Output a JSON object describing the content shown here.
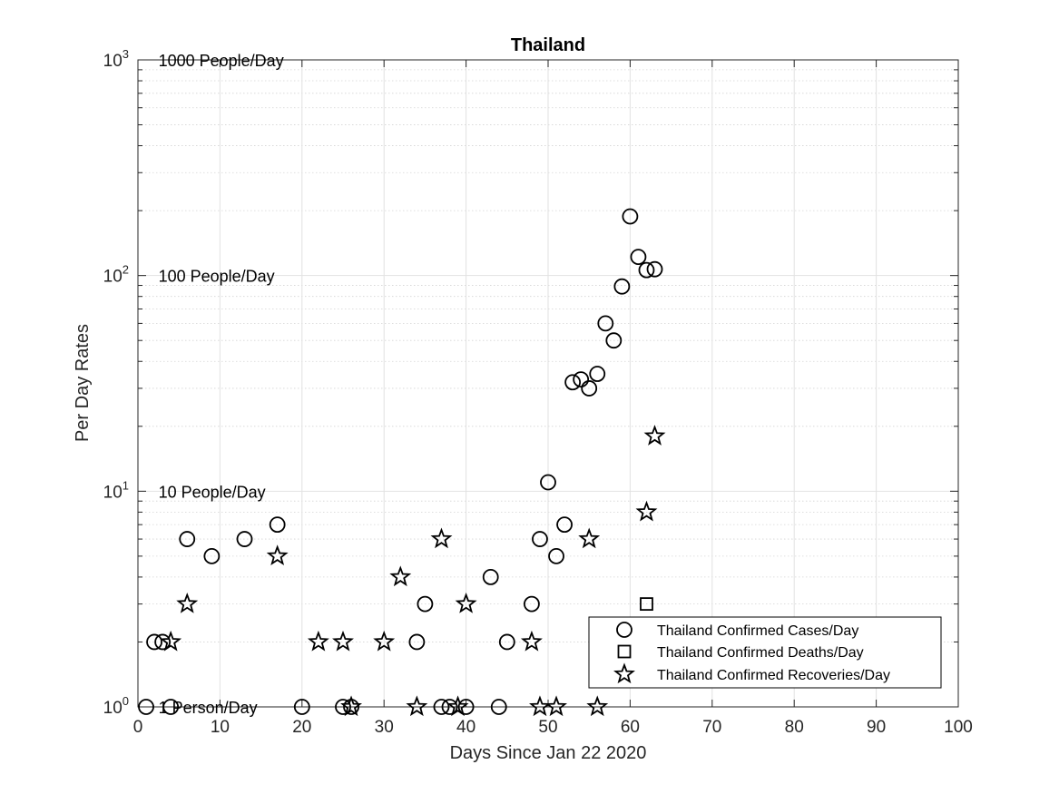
{
  "chart_data": {
    "type": "scatter",
    "title": "Thailand",
    "xlabel": "Days Since Jan 22 2020",
    "ylabel": "Per Day Rates",
    "xlim": [
      0,
      100
    ],
    "ylim": [
      1,
      1000
    ],
    "yscale": "log",
    "grid": true,
    "minor_grid": true,
    "legend_position": "lower-right",
    "x_ticks": [
      0,
      10,
      20,
      30,
      40,
      50,
      60,
      70,
      80,
      90,
      100
    ],
    "x_tick_labels": [
      "0",
      "10",
      "20",
      "30",
      "40",
      "50",
      "60",
      "70",
      "80",
      "90",
      "100"
    ],
    "y_ticks": [
      {
        "value": 1,
        "base": "10",
        "exp": "0"
      },
      {
        "value": 10,
        "base": "10",
        "exp": "1"
      },
      {
        "value": 100,
        "base": "10",
        "exp": "2"
      },
      {
        "value": 1000,
        "base": "10",
        "exp": "3"
      }
    ],
    "annotations": [
      {
        "text": "1 Person/Day",
        "x": 2.5,
        "y": 1
      },
      {
        "text": "10 People/Day",
        "x": 2.5,
        "y": 10
      },
      {
        "text": "100 People/Day",
        "x": 2.5,
        "y": 100
      },
      {
        "text": "1000 People/Day",
        "x": 2.5,
        "y": 1000
      }
    ],
    "series": [
      {
        "name": "Thailand Confirmed Cases/Day",
        "marker": "circle",
        "points": [
          [
            1,
            1
          ],
          [
            2,
            2
          ],
          [
            3,
            2
          ],
          [
            4,
            1
          ],
          [
            6,
            6
          ],
          [
            9,
            5
          ],
          [
            13,
            6
          ],
          [
            17,
            7
          ],
          [
            20,
            1
          ],
          [
            25,
            1
          ],
          [
            26,
            1
          ],
          [
            34,
            2
          ],
          [
            35,
            3
          ],
          [
            37,
            1
          ],
          [
            38,
            1
          ],
          [
            40,
            1
          ],
          [
            43,
            4
          ],
          [
            44,
            1
          ],
          [
            45,
            2
          ],
          [
            48,
            3
          ],
          [
            49,
            6
          ],
          [
            50,
            11
          ],
          [
            51,
            5
          ],
          [
            52,
            7
          ],
          [
            53,
            32
          ],
          [
            54,
            33
          ],
          [
            55,
            30
          ],
          [
            56,
            35
          ],
          [
            57,
            60
          ],
          [
            58,
            50
          ],
          [
            59,
            89
          ],
          [
            60,
            188
          ],
          [
            61,
            122
          ],
          [
            62,
            106
          ],
          [
            63,
            107
          ]
        ]
      },
      {
        "name": "Thailand Confirmed Deaths/Day",
        "marker": "square",
        "points": [
          [
            62,
            3
          ]
        ]
      },
      {
        "name": "Thailand Confirmed Recoveries/Day",
        "marker": "star",
        "points": [
          [
            4,
            2
          ],
          [
            6,
            3
          ],
          [
            17,
            5
          ],
          [
            22,
            2
          ],
          [
            25,
            2
          ],
          [
            26,
            1
          ],
          [
            30,
            2
          ],
          [
            32,
            4
          ],
          [
            34,
            1
          ],
          [
            37,
            6
          ],
          [
            39,
            1
          ],
          [
            40,
            3
          ],
          [
            48,
            2
          ],
          [
            49,
            1
          ],
          [
            51,
            1
          ],
          [
            55,
            6
          ],
          [
            56,
            1
          ],
          [
            62,
            8
          ],
          [
            63,
            18
          ]
        ]
      }
    ]
  }
}
